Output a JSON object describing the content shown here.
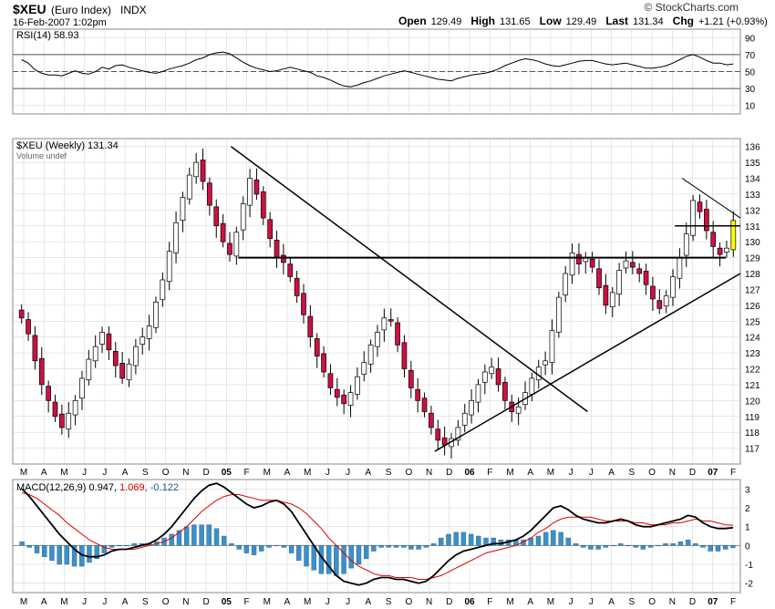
{
  "header": {
    "symbol": "$XEU",
    "name": "(Euro Index)",
    "exchange": "INDX",
    "date": "16-Feb-2007 1:02pm",
    "brand": "© StockCharts.com",
    "quote": [
      {
        "label": "Open",
        "value": "129.49"
      },
      {
        "label": "High",
        "value": "131.65"
      },
      {
        "label": "Low",
        "value": "129.49"
      },
      {
        "label": "Last",
        "value": "131.34"
      },
      {
        "label": "Chg",
        "value": "+1.21 (+0.93%)"
      }
    ]
  },
  "colors": {
    "up": "#ffffff",
    "down": "#cc1144",
    "candle_outline": "#000000",
    "macd_line": "#000000",
    "signal_line": "#dd0000",
    "histogram": "#3d8fc6",
    "highlight": "#ffff00",
    "grid": "#cfcfcf"
  },
  "chart_data": [
    {
      "type": "line",
      "panel": "rsi",
      "legend": "RSI(14) 58.93",
      "ylim": [
        0,
        100
      ],
      "yticks": [
        10,
        30,
        50,
        70,
        90
      ],
      "reference_lines": [
        30,
        50,
        70
      ],
      "series": [
        {
          "name": "RSI(14)",
          "values": [
            64,
            60,
            52,
            48,
            46,
            46,
            45,
            48,
            51,
            48,
            47,
            50,
            55,
            53,
            57,
            58,
            55,
            53,
            51,
            49,
            48,
            50,
            53,
            55,
            57,
            60,
            64,
            66,
            70,
            72,
            73,
            71,
            66,
            61,
            57,
            54,
            52,
            50,
            51,
            53,
            55,
            53,
            51,
            49,
            45,
            43,
            40,
            36,
            33,
            32,
            34,
            37,
            39,
            42,
            45,
            47,
            49,
            51,
            49,
            47,
            45,
            43,
            41,
            40,
            39,
            42,
            44,
            46,
            47,
            48,
            50,
            53,
            57,
            60,
            63,
            65,
            64,
            62,
            59,
            57,
            56,
            58,
            60,
            62,
            63,
            63,
            61,
            59,
            58,
            59,
            60,
            58,
            56,
            54,
            54,
            55,
            57,
            60,
            64,
            68,
            70,
            67,
            63,
            60,
            60,
            58,
            59
          ]
        }
      ]
    },
    {
      "type": "candlestick",
      "panel": "price",
      "legend": "$XEU (Weekly) 131.34",
      "legend2": "Volume undef",
      "ylim": [
        116,
        136.5
      ],
      "yticks": [
        117,
        118,
        119,
        120,
        121,
        122,
        123,
        124,
        125,
        126,
        127,
        128,
        129,
        130,
        131,
        132,
        133,
        134,
        135,
        136
      ],
      "x_tick_labels": [
        "M",
        "A",
        "M",
        "J",
        "J",
        "A",
        "S",
        "O",
        "N",
        "D",
        "05",
        "F",
        "M",
        "A",
        "M",
        "J",
        "J",
        "A",
        "S",
        "O",
        "N",
        "D",
        "06",
        "F",
        "M",
        "A",
        "M",
        "J",
        "J",
        "A",
        "S",
        "O",
        "N",
        "D",
        "07",
        "F"
      ],
      "closes": [
        125.2,
        124.2,
        122.5,
        121.0,
        120.0,
        119.0,
        118.3,
        119.2,
        120.0,
        121.4,
        122.6,
        123.4,
        124.3,
        123.2,
        122.2,
        121.4,
        122.3,
        123.4,
        124.0,
        124.7,
        126.2,
        127.6,
        129.4,
        131.2,
        132.8,
        134.2,
        135.0,
        133.8,
        132.3,
        131.0,
        130.0,
        129.2,
        130.6,
        132.4,
        134.0,
        133.0,
        131.5,
        130.2,
        129.0,
        128.7,
        127.8,
        126.6,
        125.4,
        124.0,
        122.8,
        121.8,
        120.8,
        120.2,
        119.8,
        120.5,
        121.5,
        122.4,
        123.5,
        124.3,
        125.2,
        125.0,
        123.5,
        122.0,
        120.8,
        120.0,
        119.3,
        118.3,
        117.5,
        117.2,
        117.6,
        118.3,
        119.2,
        120.0,
        121.0,
        121.8,
        122.1,
        121.0,
        120.0,
        119.3,
        119.6,
        120.5,
        121.4,
        122.1,
        122.5,
        124.4,
        126.5,
        128.0,
        129.3,
        128.6,
        129.0,
        128.4,
        127.1,
        126.0,
        126.8,
        128.2,
        128.8,
        128.4,
        128.0,
        127.3,
        126.4,
        125.8,
        126.6,
        127.8,
        129.0,
        130.5,
        132.6,
        131.9,
        130.7,
        129.7,
        129.2,
        129.6,
        131.34
      ],
      "annotations": {
        "resistance_1": {
          "x": [
            0.31,
            0.98
          ],
          "y": 129.0
        },
        "downtrend_1": {
          "x": [
            0.3,
            0.79
          ],
          "y": [
            136.0,
            119.3
          ]
        },
        "uptrend": {
          "x": [
            0.58,
            1.0
          ],
          "y": [
            116.8,
            128.0
          ]
        },
        "resistance_2": {
          "x": [
            0.91,
            1.0
          ],
          "y": 131.0
        },
        "downtrend_2": {
          "x": [
            0.92,
            1.0
          ],
          "y": [
            134.0,
            131.5
          ]
        },
        "highlight_candle": "last"
      }
    },
    {
      "type": "line+histogram",
      "panel": "macd",
      "legend": "MACD(12,26,9)",
      "legend_values": [
        "0.947",
        "1.069",
        "-0.122"
      ],
      "ylim": [
        -2.5,
        3.5
      ],
      "yticks": [
        -2,
        -1,
        0,
        1,
        2,
        3
      ],
      "x_tick_labels": [
        "M",
        "A",
        "M",
        "J",
        "J",
        "A",
        "S",
        "O",
        "N",
        "D",
        "05",
        "F",
        "M",
        "A",
        "M",
        "J",
        "J",
        "A",
        "S",
        "O",
        "N",
        "D",
        "06",
        "F",
        "M",
        "A",
        "M",
        "J",
        "J",
        "A",
        "S",
        "O",
        "N",
        "D",
        "07",
        "F"
      ],
      "series": [
        {
          "name": "MACD",
          "values": [
            3.0,
            2.6,
            2.1,
            1.6,
            1.1,
            0.6,
            0.2,
            -0.2,
            -0.5,
            -0.6,
            -0.6,
            -0.5,
            -0.3,
            -0.2,
            -0.2,
            -0.1,
            0.0,
            0.1,
            0.3,
            0.6,
            1.0,
            1.5,
            2.0,
            2.5,
            2.9,
            3.2,
            3.3,
            3.1,
            2.8,
            2.5,
            2.2,
            2.0,
            2.1,
            2.3,
            2.4,
            2.2,
            1.8,
            1.2,
            0.6,
            0.0,
            -0.6,
            -1.1,
            -1.6,
            -1.9,
            -2.0,
            -2.1,
            -2.0,
            -1.8,
            -1.7,
            -1.7,
            -1.8,
            -1.8,
            -1.9,
            -2.0,
            -1.9,
            -1.6,
            -1.2,
            -0.8,
            -0.5,
            -0.3,
            -0.2,
            -0.1,
            0.0,
            0.1,
            0.1,
            0.2,
            0.3,
            0.5,
            0.8,
            1.2,
            1.6,
            2.0,
            2.1,
            1.9,
            1.6,
            1.4,
            1.3,
            1.2,
            1.2,
            1.3,
            1.4,
            1.3,
            1.1,
            1.0,
            1.0,
            1.1,
            1.2,
            1.3,
            1.4,
            1.6,
            1.5,
            1.2,
            1.0,
            0.9,
            0.9,
            0.947
          ]
        },
        {
          "name": "Signal",
          "values": [
            2.8,
            2.7,
            2.5,
            2.2,
            1.9,
            1.6,
            1.2,
            0.9,
            0.6,
            0.3,
            0.1,
            -0.1,
            -0.2,
            -0.2,
            -0.2,
            -0.2,
            -0.1,
            0.0,
            0.1,
            0.2,
            0.4,
            0.7,
            1.0,
            1.4,
            1.8,
            2.1,
            2.4,
            2.6,
            2.7,
            2.7,
            2.6,
            2.5,
            2.4,
            2.4,
            2.4,
            2.3,
            2.2,
            2.0,
            1.7,
            1.3,
            0.9,
            0.4,
            0.0,
            -0.4,
            -0.8,
            -1.1,
            -1.3,
            -1.5,
            -1.6,
            -1.6,
            -1.7,
            -1.7,
            -1.7,
            -1.8,
            -1.8,
            -1.7,
            -1.6,
            -1.4,
            -1.2,
            -1.0,
            -0.8,
            -0.6,
            -0.4,
            -0.3,
            -0.2,
            -0.1,
            0.0,
            0.2,
            0.4,
            0.7,
            0.9,
            1.2,
            1.4,
            1.5,
            1.5,
            1.5,
            1.5,
            1.4,
            1.3,
            1.3,
            1.3,
            1.3,
            1.2,
            1.2,
            1.1,
            1.1,
            1.1,
            1.2,
            1.2,
            1.3,
            1.4,
            1.3,
            1.3,
            1.2,
            1.1,
            1.069
          ]
        }
      ]
    }
  ]
}
